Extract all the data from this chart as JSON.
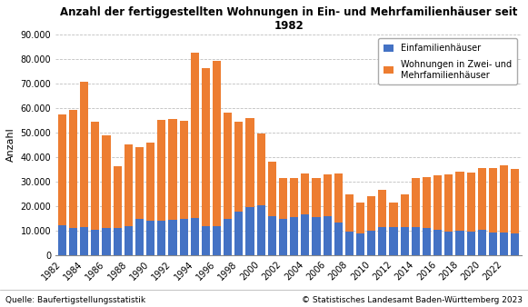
{
  "title": "Anzahl der fertiggestellten Wohnungen in Ein- und Mehrfamilienhäuser seit\n1982",
  "ylabel": "Anzahl",
  "source_left": "Quelle: Baufertigstellungsstatistik",
  "source_right": "© Statistisches Landesamt Baden-Württemberg 2023",
  "legend_einfamilien": "Einfamilienhäuser",
  "legend_mehrfamilien": "Wohnungen in Zwei- und\nMehrfamilienhäuser",
  "color_einfamilien": "#4472C4",
  "color_mehrfamilien": "#ED7D31",
  "background_color": "#FFFFFF",
  "grid_color": "#BFBFBF",
  "ylim": [
    0,
    90000
  ],
  "yticks": [
    0,
    10000,
    20000,
    30000,
    40000,
    50000,
    60000,
    70000,
    80000,
    90000
  ],
  "years": [
    1982,
    1983,
    1984,
    1985,
    1986,
    1987,
    1988,
    1989,
    1990,
    1991,
    1992,
    1993,
    1994,
    1995,
    1996,
    1997,
    1998,
    1999,
    2000,
    2001,
    2002,
    2003,
    2004,
    2005,
    2006,
    2007,
    2008,
    2009,
    2010,
    2011,
    2012,
    2013,
    2014,
    2015,
    2016,
    2017,
    2018,
    2019,
    2020,
    2021,
    2022,
    2023
  ],
  "einfamilien": [
    12200,
    11000,
    11500,
    10500,
    11000,
    11200,
    12000,
    15000,
    14200,
    14200,
    14500,
    14800,
    15300,
    12000,
    12000,
    15000,
    18000,
    19500,
    20500,
    16000,
    15000,
    15500,
    16800,
    15500,
    16000,
    13500,
    9800,
    9000,
    10200,
    11500,
    11500,
    11500,
    11500,
    11000,
    10500,
    9800,
    10000,
    9800,
    10500,
    9500,
    9500,
    9000
  ],
  "mehrfamilien": [
    45000,
    48000,
    59000,
    44000,
    38000,
    25000,
    33000,
    29000,
    31500,
    41000,
    41000,
    40000,
    67000,
    64000,
    67000,
    43000,
    36500,
    36500,
    29000,
    22000,
    16500,
    16000,
    16500,
    16000,
    17000,
    20000,
    15000,
    12500,
    14000,
    15000,
    10000,
    13500,
    20000,
    21000,
    22000,
    23000,
    24000,
    24000,
    25000,
    26000,
    27000,
    26000
  ]
}
